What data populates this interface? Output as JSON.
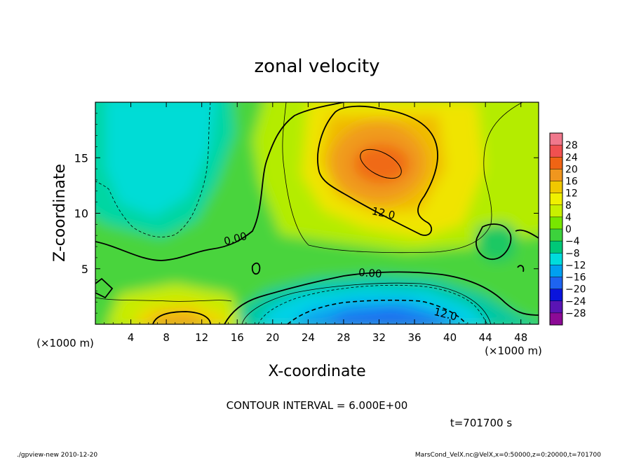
{
  "chart_data": {
    "type": "heatmap",
    "title": "zonal velocity",
    "xlabel": "X-coordinate",
    "ylabel": "Z-coordinate",
    "x_unit_left": "(×1000 m)",
    "x_unit_right": "(×1000 m)",
    "xlim": [
      0,
      50
    ],
    "ylim": [
      0,
      20
    ],
    "x_ticks": [
      4,
      8,
      12,
      16,
      20,
      24,
      28,
      32,
      36,
      40,
      44,
      48
    ],
    "y_ticks": [
      5,
      10,
      15
    ],
    "contour_labels": [
      {
        "text": "12.0",
        "x": 32.5,
        "z": 10.0
      },
      {
        "text": "0.00",
        "x": 15.8,
        "z": 7.7
      },
      {
        "text": "0.00",
        "x": 31.0,
        "z": 4.6
      },
      {
        "text": "12.0",
        "x": 39.5,
        "z": 0.9
      }
    ],
    "contour_interval_text": "CONTOUR INTERVAL = 6.000E+00",
    "time_text": "t=701700 s",
    "colorbar": {
      "labels": [
        "28",
        "24",
        "20",
        "16",
        "12",
        "8",
        "4",
        "0",
        "−4",
        "−8",
        "−12",
        "−16",
        "−20",
        "−24",
        "−28"
      ],
      "colors": [
        "#f0788c",
        "#f05050",
        "#f06414",
        "#f0961e",
        "#f0c800",
        "#f0f000",
        "#c8f000",
        "#78e600",
        "#3cd23c",
        "#00c878",
        "#00dcdc",
        "#00a0f0",
        "#1e64f0",
        "#0a14dc",
        "#5a14b4",
        "#8c0a96"
      ]
    }
  },
  "footer": {
    "left": "./gpview-new  2010-12-20",
    "right": "MarsCond_VelX.nc@VelX,x=0:50000,z=0:20000,t=701700"
  }
}
